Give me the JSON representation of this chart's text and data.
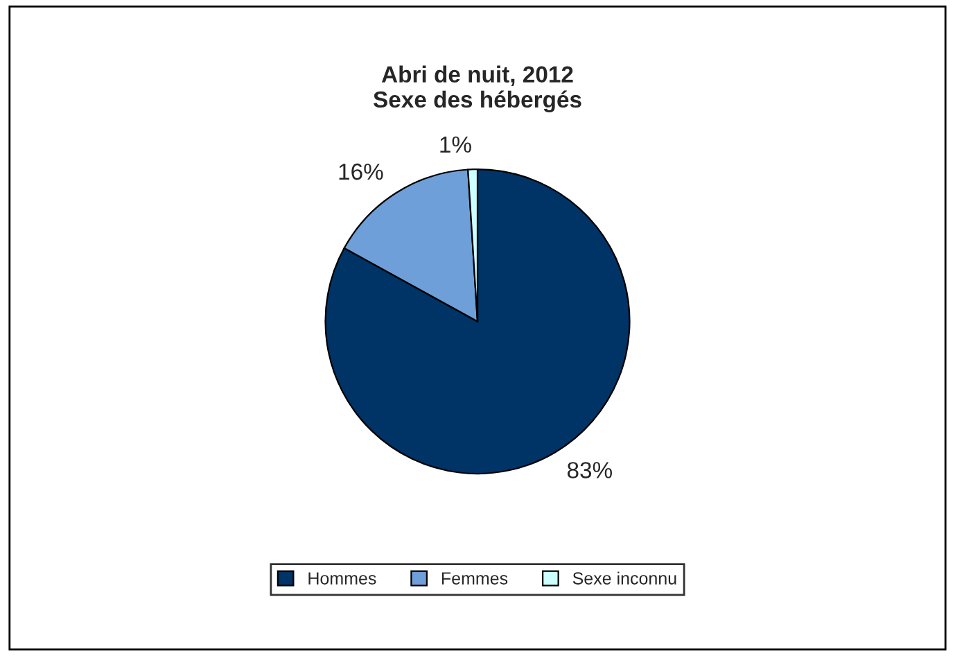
{
  "chart_data": {
    "type": "pie",
    "title": "Abri de nuit, 2012\nSexe des hébergés",
    "categories": [
      "Hommes",
      "Femmes",
      "Sexe inconnu"
    ],
    "values": [
      83,
      16,
      1
    ],
    "value_labels": [
      "83%",
      "16%",
      "1%"
    ],
    "colors": [
      "#003366",
      "#6f9fd8",
      "#ccffff"
    ],
    "legend": "bottom"
  }
}
